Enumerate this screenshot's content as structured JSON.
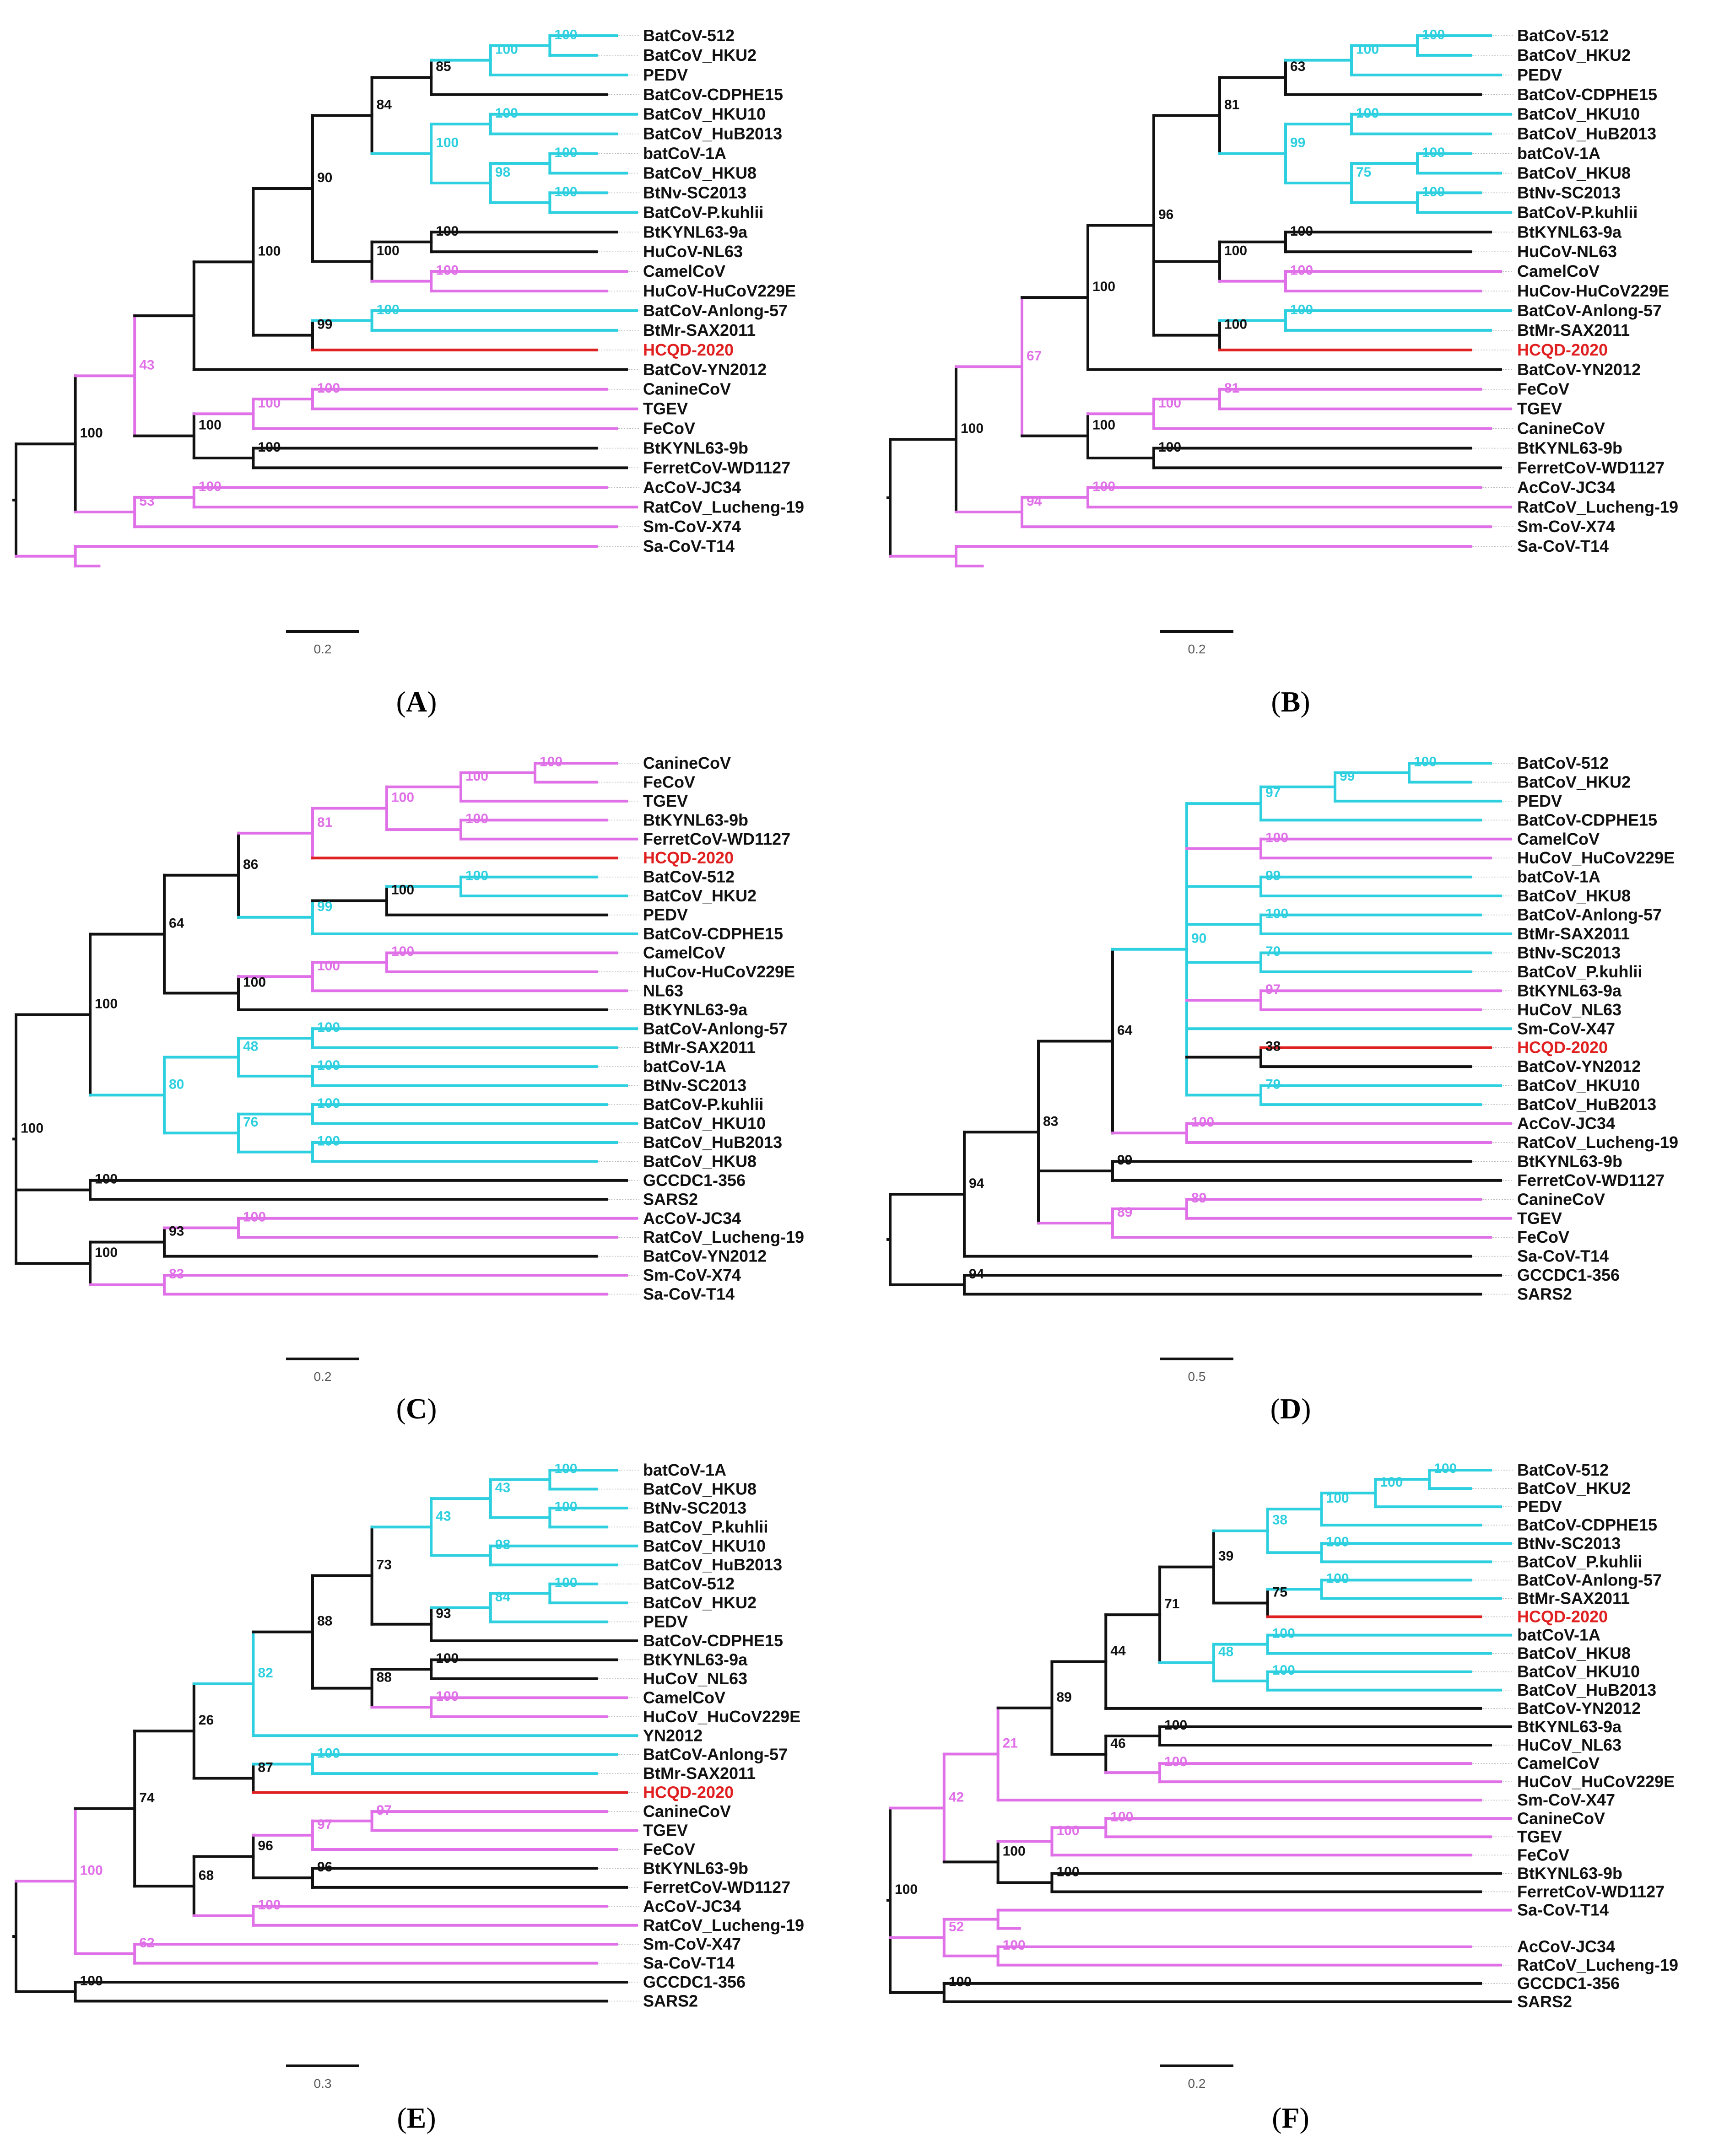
{
  "colors": {
    "bat": "#2ed0e0",
    "other": "#e070e8",
    "backbone": "#111111",
    "highlight": "#e02020"
  },
  "panels": [
    {
      "letter": "A",
      "scale": "0.2",
      "tree": [
        "B",
        [
          "B",
          [
            "M",
            [
              "B",
              [
                "B",
                [
                  "B",
                  [
                    "B",
                    [
                      "B",
                      [
                        "C",
                        [
                          "C",
                          "BatCoV-512",
                          "BatCoV_HKU2",
                          "100"
                        ],
                        "PEDV",
                        "100"
                      ],
                      "BatCoV-CDPHE15",
                      "85"
                    ],
                    [
                      "C",
                      [
                        "C",
                        "BatCoV_HKU10",
                        "BatCoV_HuB2013",
                        "100"
                      ],
                      [
                        "C",
                        [
                          "C",
                          "batCoV-1A",
                          "BatCoV_HKU8",
                          "100"
                        ],
                        [
                          "C",
                          "BtNv-SC2013",
                          "BatCoV-P.kuhlii",
                          "100"
                        ],
                        "98"
                      ],
                      "100"
                    ],
                    "84"
                  ],
                  [
                    "B",
                    [
                      "B",
                      "BtKYNL63-9a",
                      "HuCoV-NL63",
                      "100"
                    ],
                    [
                      "M",
                      "CamelCoV",
                      "HuCoV-HuCoV229E",
                      "100"
                    ],
                    "100"
                  ],
                  "90"
                ],
                [
                  "B",
                  [
                    "C",
                    "BatCoV-Anlong-57",
                    "BtMr-SAX2011",
                    "100"
                  ],
                  "*HCQD-2020",
                  "99"
                ],
                "100"
              ],
              "BatCoV-YN2012",
              ""
            ],
            [
              "B",
              [
                "M",
                [
                  "M",
                  "CanineCoV",
                  "TGEV",
                  "100"
                ],
                "FeCoV",
                "100"
              ],
              [
                "B",
                "BtKYNL63-9b",
                "FerretCoV-WD1127",
                "100"
              ],
              "100"
            ],
            "43"
          ],
          [
            "M",
            [
              "M",
              "AcCoV-JC34",
              "RatCoV_Lucheng-19",
              "100"
            ],
            "Sm-CoV-X74",
            "53"
          ],
          "100"
        ],
        [
          "M",
          "Sa-CoV-T14",
          "",
          ""
        ],
        ""
      ]
    },
    {
      "letter": "B",
      "scale": "0.2",
      "tree": [
        "B",
        [
          "B",
          [
            "M",
            [
              "B",
              [
                "B",
                [
                  "B",
                  [
                    "B",
                    [
                      "C",
                      [
                        "C",
                        "BatCoV-512",
                        "BatCoV_HKU2",
                        "100"
                      ],
                      "PEDV",
                      "100"
                    ],
                    "BatCoV-CDPHE15",
                    "63"
                  ],
                  [
                    "C",
                    [
                      "C",
                      "BatCoV_HKU10",
                      "BatCoV_HuB2013",
                      "100"
                    ],
                    [
                      "C",
                      [
                        "C",
                        "batCoV-1A",
                        "BatCoV_HKU8",
                        "100"
                      ],
                      [
                        "C",
                        "BtNv-SC2013",
                        "BatCoV-P.kuhlii",
                        "100"
                      ],
                      "75"
                    ],
                    "99"
                  ],
                  "81"
                ],
                [
                  "B",
                  [
                    "B",
                    "BtKYNL63-9a",
                    "HuCoV-NL63",
                    "100"
                  ],
                  [
                    "M",
                    "CamelCoV",
                    "HuCov-HuCoV229E",
                    "100"
                  ],
                  "100"
                ],
                [
                  "B",
                  [
                    "C",
                    "BatCoV-Anlong-57",
                    "BtMr-SAX2011",
                    "100"
                  ],
                  "*HCQD-2020",
                  "100"
                ],
                "96"
              ],
              "BatCoV-YN2012",
              "100"
            ],
            [
              "B",
              [
                "M",
                [
                  "M",
                  "FeCoV",
                  "TGEV",
                  "81"
                ],
                "CanineCoV",
                "100"
              ],
              [
                "B",
                "BtKYNL63-9b",
                "FerretCoV-WD1127",
                "100"
              ],
              "100"
            ],
            "67"
          ],
          [
            "M",
            [
              "M",
              "AcCoV-JC34",
              "RatCoV_Lucheng-19",
              "100"
            ],
            "Sm-CoV-X74",
            "94"
          ],
          "100"
        ],
        [
          "M",
          "Sa-CoV-T14",
          "",
          ""
        ],
        ""
      ]
    },
    {
      "letter": "C",
      "scale": "0.2",
      "tree": [
        "B",
        [
          "B",
          [
            "B",
            [
              "B",
              [
                "M",
                [
                  "M",
                  [
                    "M",
                    [
                      "M",
                      "CanineCoV",
                      "FeCoV",
                      "100"
                    ],
                    "TGEV",
                    "100"
                  ],
                  [
                    "M",
                    "BtKYNL63-9b",
                    "FerretCoV-WD1127",
                    "100"
                  ],
                  "100"
                ],
                "*HCQD-2020",
                "81"
              ],
              [
                "C",
                [
                  "B",
                  [
                    "C",
                    "BatCoV-512",
                    "BatCoV_HKU2",
                    "100"
                  ],
                  "PEDV",
                  "100"
                ],
                "BatCoV-CDPHE15",
                "99"
              ],
              "86"
            ],
            [
              "B",
              [
                "M",
                [
                  "M",
                  "CamelCoV",
                  "HuCov-HuCoV229E",
                  "100"
                ],
                "NL63",
                "100"
              ],
              "BtKYNL63-9a",
              "100"
            ],
            "64"
          ],
          [
            "C",
            [
              "C",
              [
                "C",
                "BatCoV-Anlong-57",
                "BtMr-SAX2011",
                "100"
              ],
              [
                "C",
                "batCoV-1A",
                "BtNv-SC2013",
                "100"
              ],
              "48"
            ],
            [
              "C",
              [
                "C",
                "BatCoV-P.kuhlii",
                "BatCoV_HKU10",
                "100"
              ],
              [
                "C",
                "BatCoV_HuB2013",
                "BatCoV_HKU8",
                "100"
              ],
              "76"
            ],
            "80"
          ],
          "100"
        ],
        [
          "B",
          "GCCDC1-356",
          "SARS2",
          "100"
        ],
        [
          "B",
          [
            "B",
            [
              "M",
              "AcCoV-JC34",
              "RatCoV_Lucheng-19",
              "100"
            ],
            "BatCoV-YN2012",
            "93"
          ],
          [
            "M",
            "Sm-CoV-X74",
            "Sa-CoV-T14",
            "83"
          ],
          "100"
        ],
        "100"
      ]
    },
    {
      "letter": "D",
      "scale": "0.5",
      "tree": [
        "B",
        [
          "B",
          [
            "B",
            [
              "B",
              [
                "C",
                [
                  "C",
                  [
                    "C",
                    [
                      "C",
                      "BatCoV-512",
                      "BatCoV_HKU2",
                      "100"
                    ],
                    "PEDV",
                    "99"
                  ],
                  "BatCoV-CDPHE15",
                  "97"
                ],
                [
                  "M",
                  "CamelCoV",
                  "HuCoV_HuCoV229E",
                  "100"
                ],
                [
                  "C",
                  "batCoV-1A",
                  "BatCoV_HKU8",
                  "99"
                ],
                [
                  "C",
                  "BatCoV-Anlong-57",
                  "BtMr-SAX2011",
                  "100"
                ],
                [
                  "C",
                  "BtNv-SC2013",
                  "BatCoV_P.kuhlii",
                  "70"
                ],
                [
                  "M",
                  "BtKYNL63-9a",
                  "HuCoV_NL63",
                  "97"
                ],
                "Sm-CoV-X47",
                [
                  "B",
                  "*HCQD-2020",
                  "BatCoV-YN2012",
                  "38"
                ],
                [
                  "C",
                  "BatCoV_HKU10",
                  "BatCoV_HuB2013",
                  "79"
                ],
                "90"
              ],
              [
                "M",
                "AcCoV-JC34",
                "RatCoV_Lucheng-19",
                "100"
              ],
              "64"
            ],
            [
              "B",
              "BtKYNL63-9b",
              "FerretCoV-WD1127",
              "99"
            ],
            [
              "M",
              [
                "M",
                "CanineCoV",
                "TGEV",
                "89"
              ],
              "FeCoV",
              "89"
            ],
            "83"
          ],
          "Sa-CoV-T14",
          "94"
        ],
        [
          "B",
          "GCCDC1-356",
          "SARS2",
          "94"
        ],
        ""
      ]
    },
    {
      "letter": "E",
      "scale": "0.3",
      "tree": [
        "B",
        [
          "M",
          [
            "B",
            [
              "B",
              [
                "C",
                [
                  "B",
                  [
                    "B",
                    [
                      "C",
                      [
                        "C",
                        [
                          "C",
                          "batCoV-1A",
                          "BatCoV_HKU8",
                          "100"
                        ],
                        [
                          "C",
                          "BtNv-SC2013",
                          "BatCoV_P.kuhlii",
                          "100"
                        ],
                        "43"
                      ],
                      [
                        "C",
                        "BatCoV_HKU10",
                        "BatCoV_HuB2013",
                        "98"
                      ],
                      "43"
                    ],
                    [
                      "B",
                      [
                        "C",
                        [
                          "C",
                          "BatCoV-512",
                          "BatCoV_HKU2",
                          "100"
                        ],
                        "PEDV",
                        "84"
                      ],
                      "BatCoV-CDPHE15",
                      "93"
                    ],
                    "73"
                  ],
                  [
                    "B",
                    [
                      "B",
                      "BtKYNL63-9a",
                      "HuCoV_NL63",
                      "100"
                    ],
                    [
                      "M",
                      "CamelCoV",
                      "HuCoV_HuCoV229E",
                      "100"
                    ],
                    "88"
                  ],
                  "88"
                ],
                "YN2012",
                "82"
              ],
              [
                "B",
                [
                  "C",
                  "BatCoV-Anlong-57",
                  "BtMr-SAX2011",
                  "100"
                ],
                "*HCQD-2020",
                "87"
              ],
              "26"
            ],
            [
              "B",
              [
                "B",
                [
                  "M",
                  [
                    "M",
                    "CanineCoV",
                    "TGEV",
                    "97"
                  ],
                  "FeCoV",
                  "97"
                ],
                [
                  "B",
                  "BtKYNL63-9b",
                  "FerretCoV-WD1127",
                  "96"
                ],
                "96"
              ],
              [
                "M",
                "AcCoV-JC34",
                "RatCoV_Lucheng-19",
                "100"
              ],
              "68"
            ],
            "74"
          ],
          [
            "M",
            "Sm-CoV-X47",
            "Sa-CoV-T14",
            "62"
          ],
          "100"
        ],
        [
          "B",
          "GCCDC1-356",
          "SARS2",
          "100"
        ],
        ""
      ]
    },
    {
      "letter": "F",
      "scale": "0.2",
      "tree": [
        "B",
        [
          "M",
          [
            "M",
            [
              "B",
              [
                "B",
                [
                  "B",
                  [
                    "B",
                    [
                      "C",
                      [
                        "C",
                        [
                          "C",
                          [
                            "C",
                            "BatCoV-512",
                            "BatCoV_HKU2",
                            "100"
                          ],
                          "PEDV",
                          "100"
                        ],
                        "BatCoV-CDPHE15",
                        "100"
                      ],
                      [
                        "C",
                        "BtNv-SC2013",
                        "BatCoV_P.kuhlii",
                        "100"
                      ],
                      "38"
                    ],
                    [
                      "B",
                      [
                        "C",
                        "BatCoV-Anlong-57",
                        "BtMr-SAX2011",
                        "100"
                      ],
                      "*HCQD-2020",
                      "75"
                    ],
                    "39"
                  ],
                  [
                    "C",
                    [
                      "C",
                      "batCoV-1A",
                      "BatCoV_HKU8",
                      "100"
                    ],
                    [
                      "C",
                      "BatCoV_HKU10",
                      "BatCoV_HuB2013",
                      "100"
                    ],
                    "48"
                  ],
                  "71"
                ],
                "BatCoV-YN2012",
                "44"
              ],
              [
                "B",
                [
                  "B",
                  "BtKYNL63-9a",
                  "HuCoV_NL63",
                  "100"
                ],
                [
                  "M",
                  "CamelCoV",
                  "HuCoV_HuCoV229E",
                  "100"
                ],
                "46"
              ],
              "89"
            ],
            "Sm-CoV-X47",
            "21"
          ],
          [
            "B",
            [
              "M",
              [
                "M",
                "CanineCoV",
                "TGEV",
                "100"
              ],
              "FeCoV",
              "100"
            ],
            [
              "B",
              "BtKYNL63-9b",
              "FerretCoV-WD1127",
              "100"
            ],
            "100"
          ],
          "42"
        ],
        [
          "M",
          [
            "M",
            "Sa-CoV-T14",
            "",
            ""
          ],
          [
            "M",
            "AcCoV-JC34",
            "RatCoV_Lucheng-19",
            "100"
          ],
          "52"
        ],
        [
          "B",
          "GCCDC1-356",
          "SARS2",
          "100"
        ],
        "100"
      ]
    }
  ]
}
